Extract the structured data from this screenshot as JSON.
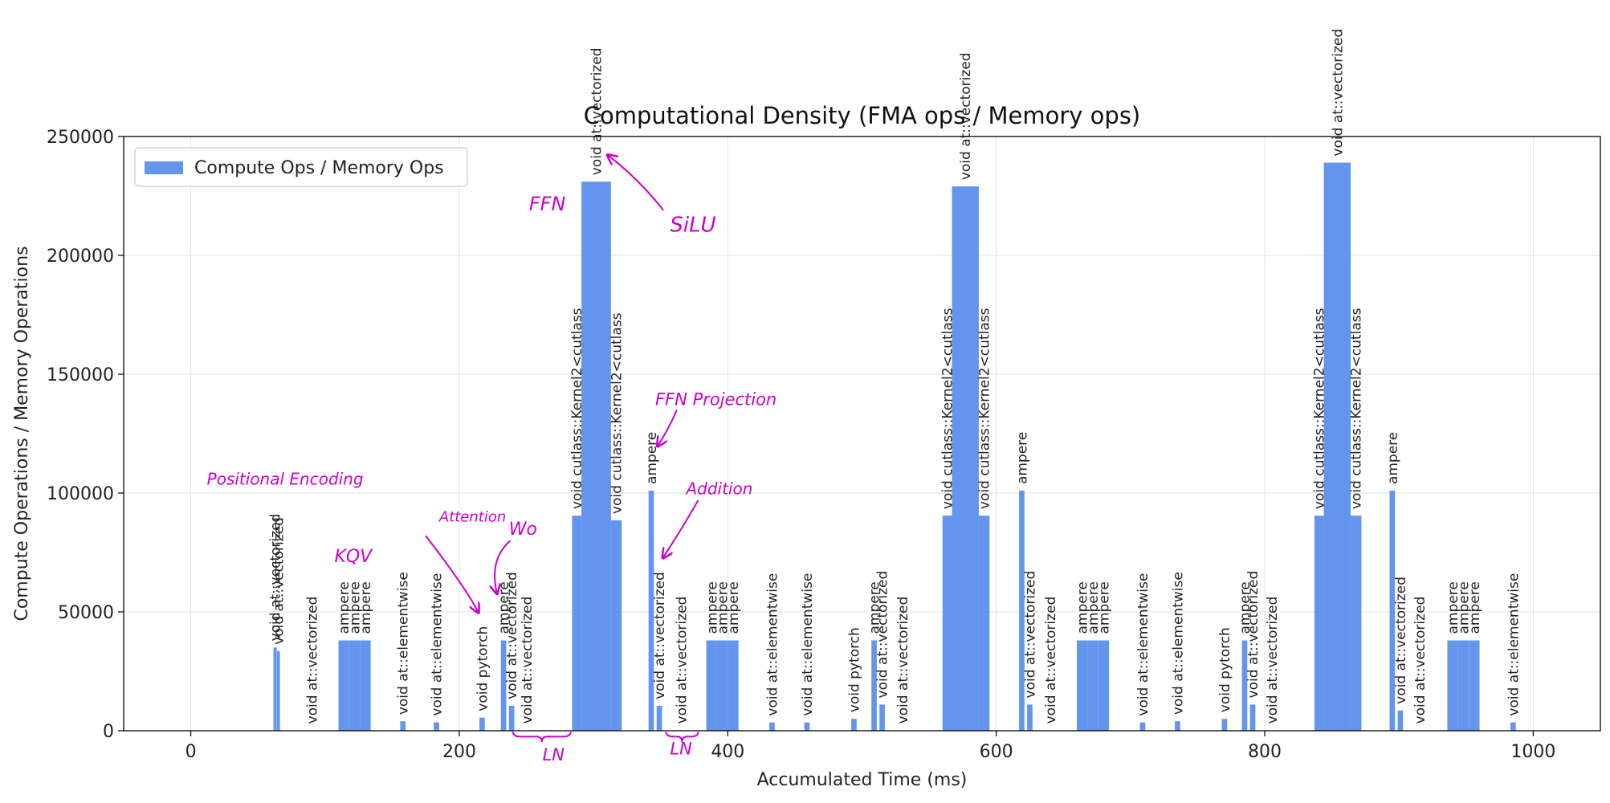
{
  "chart_data": {
    "type": "bar",
    "title": "Computational Density (FMA ops / Memory ops)",
    "xlabel": "Accumulated Time (ms)",
    "ylabel": "Compute Operations / Memory Operations",
    "xlim": [
      -50,
      1050
    ],
    "ylim": [
      0,
      250000
    ],
    "xticks": [
      0,
      200,
      400,
      600,
      800,
      1000
    ],
    "yticks": [
      0,
      50000,
      100000,
      150000,
      200000,
      250000
    ],
    "grid": true,
    "legend": {
      "position": "top-left",
      "entries": [
        "Compute Ops / Memory Ops"
      ]
    },
    "bar_color": "#6495ed",
    "annotation_color": "#cc00cc",
    "series": [
      {
        "name": "Compute Ops / Memory Ops",
        "bars": [
          {
            "x": 61.6,
            "w": 2.4,
            "y": 35000,
            "label": "void at::vectorized"
          },
          {
            "x": 64.2,
            "w": 2.2,
            "y": 33500,
            "label": "void at::vectorized"
          },
          {
            "x": 110,
            "w": 8,
            "y": 38000,
            "label": "ampere"
          },
          {
            "x": 118,
            "w": 8,
            "y": 38000,
            "label": "ampere"
          },
          {
            "x": 126,
            "w": 8,
            "y": 38000,
            "label": "ampere"
          },
          {
            "x": 90,
            "w": 0.6,
            "y": 200,
            "label": "void at::vectorized"
          },
          {
            "x": 156,
            "w": 4,
            "y": 4000,
            "label": "void at::elementwise"
          },
          {
            "x": 181,
            "w": 4,
            "y": 3500,
            "label": "void at::elementwise"
          },
          {
            "x": 215,
            "w": 4,
            "y": 5500,
            "label": "void pytorch"
          },
          {
            "x": 231,
            "w": 4,
            "y": 38000,
            "label": "ampere"
          },
          {
            "x": 237,
            "w": 4,
            "y": 10500,
            "label": "void at::vectorized"
          },
          {
            "x": 250,
            "w": 0.6,
            "y": 200,
            "label": "void at::vectorized"
          },
          {
            "x": 284,
            "w": 7,
            "y": 90500,
            "label": "void cutlass::Kernel2<cutlass"
          },
          {
            "x": 291,
            "w": 22,
            "y": 231000,
            "label": "void at::vectorized"
          },
          {
            "x": 313,
            "w": 8,
            "y": 88500,
            "label": "void cutlass::Kernel2<cutlass"
          },
          {
            "x": 341,
            "w": 4,
            "y": 101000,
            "label": "ampere"
          },
          {
            "x": 347,
            "w": 4,
            "y": 10500,
            "label": "void at::vectorized"
          },
          {
            "x": 365,
            "w": 0.6,
            "y": 200,
            "label": "void at::vectorized"
          },
          {
            "x": 384,
            "w": 8,
            "y": 38000,
            "label": "ampere"
          },
          {
            "x": 392,
            "w": 8,
            "y": 38000,
            "label": "ampere"
          },
          {
            "x": 400,
            "w": 8,
            "y": 38000,
            "label": "ampere"
          },
          {
            "x": 431,
            "w": 4,
            "y": 3500,
            "label": "void at::elementwise"
          },
          {
            "x": 457,
            "w": 4,
            "y": 3500,
            "label": "void at::elementwise"
          },
          {
            "x": 492,
            "w": 4,
            "y": 5000,
            "label": "void pytorch"
          },
          {
            "x": 507,
            "w": 4,
            "y": 38000,
            "label": "ampere"
          },
          {
            "x": 513,
            "w": 4,
            "y": 11000,
            "label": "void at::vectorized"
          },
          {
            "x": 530,
            "w": 0.6,
            "y": 200,
            "label": "void at::vectorized"
          },
          {
            "x": 560,
            "w": 7,
            "y": 90500,
            "label": "void cutlass::Kernel2<cutlass"
          },
          {
            "x": 567,
            "w": 20,
            "y": 229000,
            "label": "void at::vectorized"
          },
          {
            "x": 587,
            "w": 8,
            "y": 90500,
            "label": "void cutlass::Kernel2<cutlass"
          },
          {
            "x": 617,
            "w": 4,
            "y": 101000,
            "label": "ampere"
          },
          {
            "x": 623,
            "w": 4,
            "y": 11000,
            "label": "void at::vectorized"
          },
          {
            "x": 640,
            "w": 0.6,
            "y": 200,
            "label": "void at::vectorized"
          },
          {
            "x": 660,
            "w": 8,
            "y": 38000,
            "label": "ampere"
          },
          {
            "x": 668,
            "w": 8,
            "y": 38000,
            "label": "ampere"
          },
          {
            "x": 676,
            "w": 8,
            "y": 38000,
            "label": "ampere"
          },
          {
            "x": 707,
            "w": 4,
            "y": 3500,
            "label": "void at::elementwise"
          },
          {
            "x": 733,
            "w": 4,
            "y": 4000,
            "label": "void at::elementwise"
          },
          {
            "x": 768,
            "w": 4,
            "y": 5000,
            "label": "void pytorch"
          },
          {
            "x": 783,
            "w": 4,
            "y": 38000,
            "label": "ampere"
          },
          {
            "x": 789,
            "w": 4,
            "y": 11000,
            "label": "void at::vectorized"
          },
          {
            "x": 805,
            "w": 0.6,
            "y": 200,
            "label": "void at::vectorized"
          },
          {
            "x": 837,
            "w": 7,
            "y": 90500,
            "label": "void cutlass::Kernel2<cutlass"
          },
          {
            "x": 844,
            "w": 20,
            "y": 239000,
            "label": "void at::vectorized"
          },
          {
            "x": 864,
            "w": 8,
            "y": 90500,
            "label": "void cutlass::Kernel2<cutlass"
          },
          {
            "x": 893,
            "w": 4,
            "y": 101000,
            "label": "ampere"
          },
          {
            "x": 899,
            "w": 4,
            "y": 8500,
            "label": "void at::vectorized"
          },
          {
            "x": 915,
            "w": 0.6,
            "y": 200,
            "label": "void at::vectorized"
          },
          {
            "x": 936,
            "w": 8,
            "y": 38000,
            "label": "ampere"
          },
          {
            "x": 944,
            "w": 8,
            "y": 38000,
            "label": "ampere"
          },
          {
            "x": 952,
            "w": 8,
            "y": 38000,
            "label": "ampere"
          },
          {
            "x": 983,
            "w": 4,
            "y": 3500,
            "label": "void at::elementwise"
          }
        ]
      }
    ],
    "annotations": [
      {
        "text": "Positional Encoding",
        "x": 12,
        "y": 103500,
        "size": 20
      },
      {
        "text": "KQV",
        "x": 107,
        "y": 71000,
        "size": 22
      },
      {
        "text": "Attention",
        "x": 185,
        "y": 88000,
        "size": 18
      },
      {
        "text": "Wo",
        "x": 237,
        "y": 82500,
        "size": 22
      },
      {
        "text": "FFN",
        "x": 252,
        "y": 219000,
        "size": 24
      },
      {
        "text": "SiLU",
        "x": 357,
        "y": 210000,
        "size": 26
      },
      {
        "text": "FFN Projection",
        "x": 346,
        "y": 137000,
        "size": 21
      },
      {
        "text": "Addition",
        "x": 369,
        "y": 99500,
        "size": 20
      },
      {
        "text": "LN",
        "x": 262,
        "y": -12500,
        "size": 21
      },
      {
        "text": "LN",
        "x": 357,
        "y": -10000,
        "size": 21
      }
    ],
    "arrows": [
      {
        "from": [
          175,
          82000
        ],
        "ctrl": [
          205,
          60000
        ],
        "to": [
          214,
          50000
        ]
      },
      {
        "from": [
          238,
          80000
        ],
        "ctrl": [
          222,
          72000
        ],
        "to": [
          228,
          58000
        ]
      },
      {
        "from": [
          352,
          219000
        ],
        "ctrl": [
          334,
          232000
        ],
        "to": [
          311,
          242000
        ]
      },
      {
        "from": [
          362,
          135000
        ],
        "ctrl": [
          357,
          128000
        ],
        "to": [
          348,
          120000
        ]
      },
      {
        "from": [
          378,
          97000
        ],
        "ctrl": [
          367,
          86000
        ],
        "to": [
          352,
          73000
        ]
      }
    ],
    "braces": [
      {
        "x1": 240,
        "x2": 283,
        "y": -2500
      },
      {
        "x1": 354,
        "x2": 378,
        "y": -2500
      }
    ]
  }
}
